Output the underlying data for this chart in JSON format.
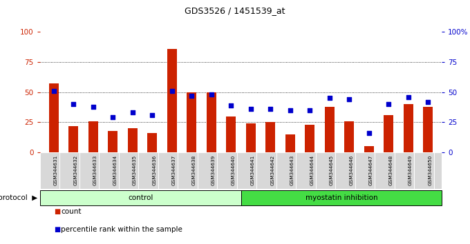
{
  "title": "GDS3526 / 1451539_at",
  "samples": [
    "GSM344631",
    "GSM344632",
    "GSM344633",
    "GSM344634",
    "GSM344635",
    "GSM344636",
    "GSM344637",
    "GSM344638",
    "GSM344639",
    "GSM344640",
    "GSM344641",
    "GSM344642",
    "GSM344643",
    "GSM344644",
    "GSM344645",
    "GSM344646",
    "GSM344647",
    "GSM344648",
    "GSM344649",
    "GSM344650"
  ],
  "count_values": [
    57,
    22,
    26,
    18,
    20,
    16,
    86,
    50,
    50,
    30,
    24,
    25,
    15,
    23,
    38,
    26,
    5,
    31,
    40,
    38
  ],
  "percentile_values": [
    51,
    40,
    38,
    29,
    33,
    31,
    51,
    47,
    48,
    39,
    36,
    36,
    35,
    35,
    45,
    44,
    16,
    40,
    46,
    42
  ],
  "bar_color": "#cc2200",
  "dot_color": "#0000cc",
  "control_count": 10,
  "myostatin_count": 10,
  "control_label": "control",
  "myostatin_label": "myostatin inhibition",
  "protocol_label": "protocol",
  "control_bg": "#ccffcc",
  "myostatin_bg": "#44dd44",
  "left_yticks": [
    0,
    25,
    50,
    75,
    100
  ],
  "right_yticks": [
    0,
    25,
    50,
    75,
    100
  ],
  "right_ylabels": [
    "0",
    "25",
    "50",
    "75",
    "100%"
  ],
  "grid_levels": [
    25,
    50,
    75
  ],
  "ylim": [
    0,
    100
  ],
  "bar_width": 0.5,
  "legend_count_label": "count",
  "legend_pct_label": "percentile rank within the sample",
  "bg_color": "#ffffff",
  "tick_area_bg": "#d8d8d8"
}
